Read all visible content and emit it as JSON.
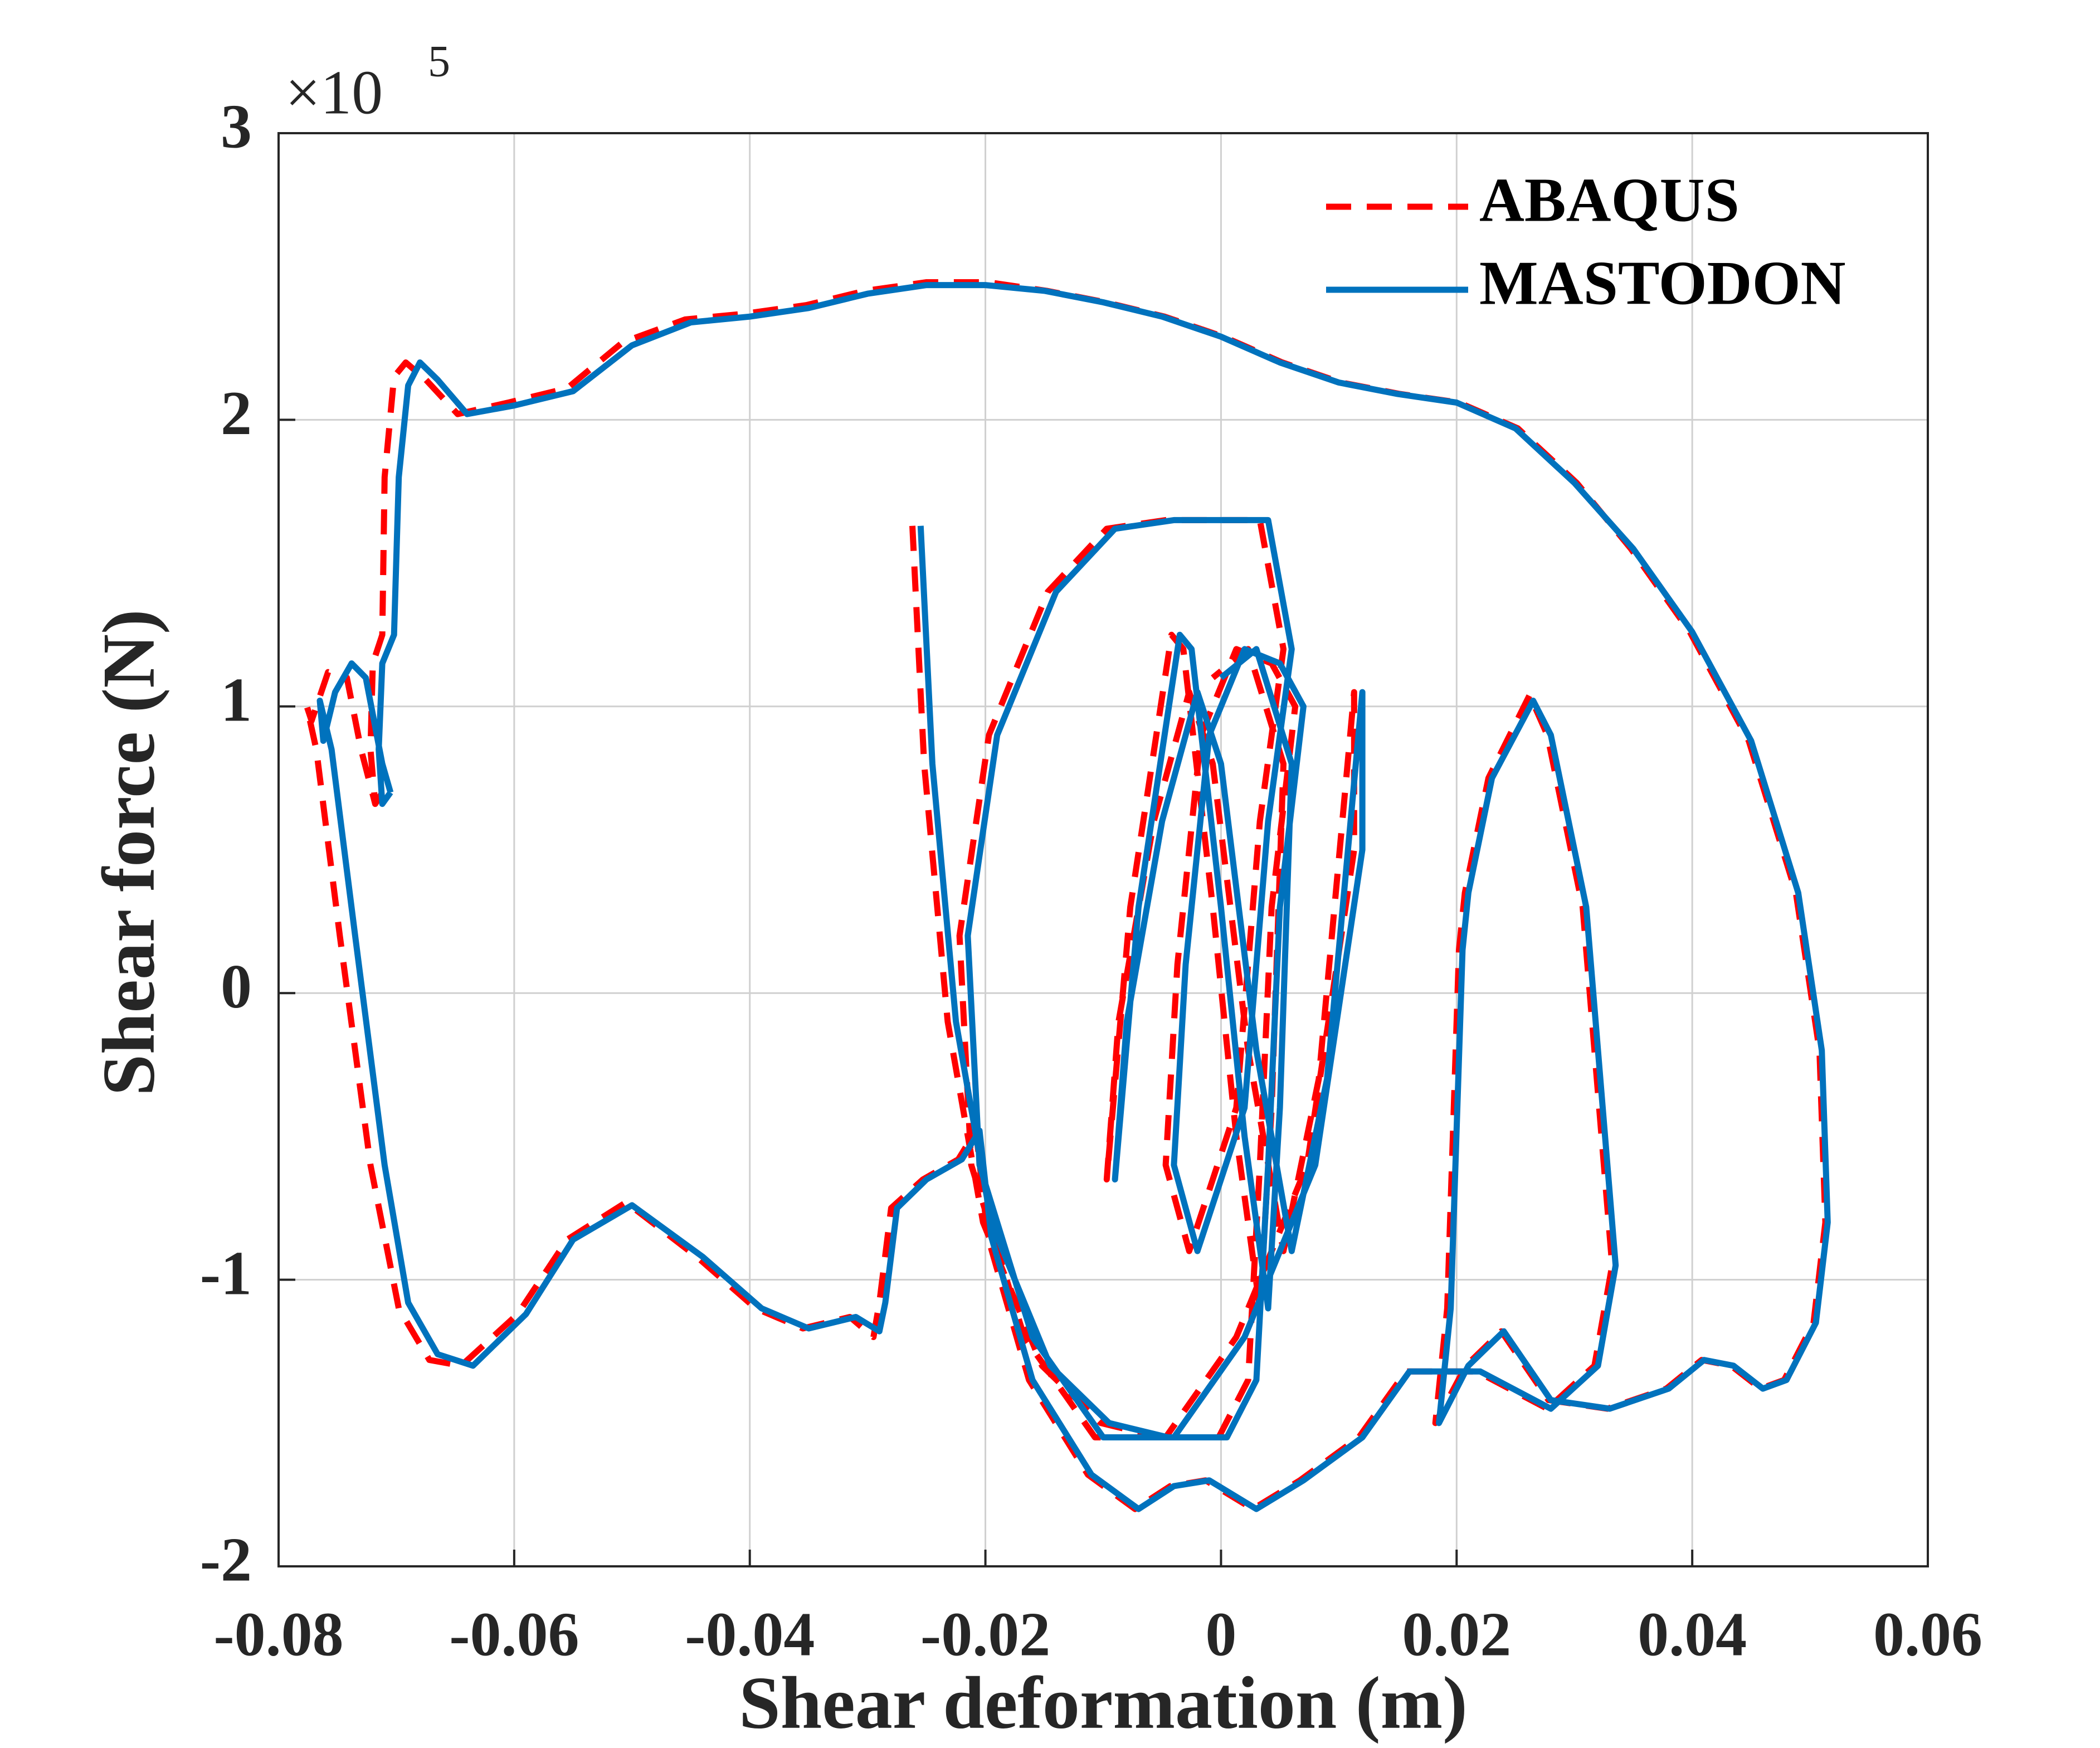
{
  "chart_data": {
    "type": "line",
    "x_label": "Shear deformation (m)",
    "y_label": "Shear force (N)",
    "y_multiplier": "×10",
    "y_multiplier_exponent": "5",
    "xlim": [
      -0.08,
      0.06
    ],
    "xticks": [
      -0.08,
      -0.06,
      -0.04,
      -0.02,
      0,
      0.02,
      0.04,
      0.06
    ],
    "ylim": [
      -2,
      3
    ],
    "yticks": [
      -2,
      -1,
      0,
      1,
      2,
      3
    ],
    "grid": true,
    "legend": "top-right",
    "series": [
      {
        "name": "ABAQUS",
        "color": "#ff0000",
        "dash": true,
        "x": [
          -0.0712,
          -0.0718,
          -0.0722,
          -0.072,
          -0.0712,
          -0.071,
          -0.0702,
          -0.0692,
          -0.0675,
          -0.0648,
          -0.0605,
          -0.0555,
          -0.0508,
          -0.0455,
          -0.0405,
          -0.0352,
          -0.0302,
          -0.025,
          -0.0198,
          -0.0148,
          -0.0098,
          -0.0048,
          0.0002,
          0.0052,
          0.0102,
          0.0152,
          0.0202,
          0.0252,
          0.0302,
          0.0348,
          0.0398,
          0.0448,
          0.0488,
          0.0508,
          0.0513,
          0.0503,
          0.0478,
          0.0458,
          0.0433,
          0.0408,
          0.0378,
          0.0328,
          0.0278,
          0.0238,
          0.0208,
          0.0182,
          0.0192,
          0.0202,
          0.0207,
          0.0227,
          0.0262,
          0.0277,
          0.0307,
          0.0332,
          0.0317,
          0.0277,
          0.0217,
          0.0157,
          0.0117,
          0.0067,
          0.0027,
          -0.0013,
          -0.0043,
          -0.0073,
          -0.0113,
          -0.0163,
          -0.0198,
          -0.0208,
          -0.0223,
          -0.0253,
          -0.028,
          -0.029,
          -0.0295,
          -0.0315,
          -0.0355,
          -0.0395,
          -0.0445,
          -0.0505,
          -0.0555,
          -0.0597,
          -0.0645,
          -0.0672,
          -0.0698,
          -0.0722,
          -0.0748,
          -0.0768,
          -0.0776,
          -0.0772,
          -0.0758,
          -0.0742,
          -0.073,
          -0.0718,
          -0.0712,
          null,
          -0.0262,
          -0.0252,
          -0.0232,
          -0.0202,
          -0.0152,
          -0.0102,
          -0.0052,
          -0.0002,
          0.0023,
          0.0033,
          0.0043,
          0.0063,
          0.0043,
          0.0013,
          -0.0017,
          -0.0037,
          -0.0047,
          -0.0027,
          0.0013,
          0.0033,
          0.0053,
          0.0033,
          -0.0047,
          -0.0097,
          -0.0147,
          -0.0197,
          -0.0222,
          -0.0212,
          -0.0167,
          -0.0107,
          -0.0047,
          0.0013,
          0.0073,
          0.0113,
          0.0113,
          0.0103,
          0.0083,
          0.0053,
          0.0023,
          -0.0007,
          -0.0027,
          -0.0057,
          -0.0087,
          -0.0097,
          -0.0077,
          -0.0042,
          -0.0032,
          -0.0007,
          0.0013,
          0.0033,
          0.0043,
          0.0053,
          0.0023,
          -0.0007
        ],
        "values": [
          0.7,
          0.66,
          0.85,
          1.15,
          1.25,
          1.8,
          2.15,
          2.2,
          2.14,
          2.02,
          2.06,
          2.11,
          2.27,
          2.35,
          2.37,
          2.4,
          2.45,
          2.48,
          2.48,
          2.45,
          2.41,
          2.36,
          2.29,
          2.2,
          2.13,
          2.09,
          2.06,
          1.97,
          1.78,
          1.55,
          1.26,
          0.88,
          0.35,
          -0.2,
          -0.8,
          -1.15,
          -1.35,
          -1.38,
          -1.3,
          -1.28,
          -1.38,
          -1.45,
          -1.42,
          -1.18,
          -1.3,
          -1.5,
          -1.1,
          0.15,
          0.35,
          0.75,
          1.04,
          0.9,
          0.3,
          -0.95,
          -1.3,
          -1.45,
          -1.32,
          -1.32,
          -1.55,
          -1.7,
          -1.8,
          -1.7,
          -1.72,
          -1.8,
          -1.68,
          -1.35,
          -0.85,
          -0.48,
          -0.58,
          -0.65,
          -0.75,
          -1.08,
          -1.2,
          -1.13,
          -1.17,
          -1.1,
          -0.92,
          -0.73,
          -0.86,
          -1.12,
          -1.3,
          -1.28,
          -1.1,
          -0.6,
          0.2,
          0.85,
          1.0,
          0.95,
          1.12,
          1.1,
          0.85,
          0.66,
          0.7,
          null,
          1.63,
          0.8,
          -0.1,
          -0.8,
          -1.3,
          -1.5,
          -1.55,
          -1.55,
          -1.35,
          -0.6,
          0.3,
          1.0,
          1.15,
          1.2,
          0.9,
          0.1,
          -0.6,
          -0.9,
          -0.4,
          0.6,
          1.2,
          1.65,
          1.65,
          1.62,
          1.4,
          0.9,
          0.2,
          -0.6,
          -1.2,
          -1.55,
          -1.55,
          -1.2,
          -0.6,
          0.5,
          1.05,
          0.6,
          -0.3,
          -0.9,
          -0.2,
          0.8,
          1.05,
          0.6,
          -0.1,
          -0.65,
          0.3,
          1.25,
          1.2,
          0.3,
          -0.5,
          -1.1,
          -0.4,
          0.8,
          1.2,
          1.1
        ]
      },
      {
        "name": "MASTODON",
        "color": "#0072bd",
        "dash": false,
        "x": [
          -0.0705,
          -0.0712,
          -0.0715,
          -0.0712,
          -0.0702,
          -0.0698,
          -0.069,
          -0.068,
          -0.0665,
          -0.064,
          -0.06,
          -0.055,
          -0.05,
          -0.045,
          -0.04,
          -0.035,
          -0.03,
          -0.025,
          -0.02,
          -0.015,
          -0.01,
          -0.005,
          0,
          0.005,
          0.01,
          0.015,
          0.02,
          0.025,
          0.03,
          0.035,
          0.04,
          0.045,
          0.049,
          0.051,
          0.0515,
          0.0505,
          0.048,
          0.046,
          0.0435,
          0.041,
          0.038,
          0.033,
          0.028,
          0.024,
          0.021,
          0.0185,
          0.0195,
          0.0205,
          0.021,
          0.023,
          0.0265,
          0.028,
          0.031,
          0.0335,
          0.032,
          0.028,
          0.022,
          0.016,
          0.012,
          0.007,
          0.003,
          -0.001,
          -0.004,
          -0.007,
          -0.011,
          -0.016,
          -0.0195,
          -0.0205,
          -0.022,
          -0.025,
          -0.0275,
          -0.0285,
          -0.029,
          -0.031,
          -0.035,
          -0.039,
          -0.044,
          -0.05,
          -0.055,
          -0.059,
          -0.0635,
          -0.0665,
          -0.069,
          -0.071,
          -0.0735,
          -0.0755,
          -0.0765,
          -0.0762,
          -0.0752,
          -0.0738,
          -0.0726,
          -0.0712,
          -0.0705,
          null,
          -0.0255,
          -0.0245,
          -0.0225,
          -0.0195,
          -0.0145,
          -0.0095,
          -0.0045,
          0.0005,
          0.003,
          0.004,
          0.005,
          0.007,
          0.005,
          0.002,
          -0.001,
          -0.003,
          -0.004,
          -0.002,
          0.002,
          0.004,
          0.006,
          0.004,
          -0.004,
          -0.009,
          -0.014,
          -0.019,
          -0.0215,
          -0.0205,
          -0.016,
          -0.01,
          -0.004,
          0.002,
          0.008,
          0.012,
          0.012,
          0.011,
          0.009,
          0.006,
          0.003,
          0,
          -0.002,
          -0.005,
          -0.008,
          -0.009,
          -0.007,
          -0.0035,
          -0.0025,
          0,
          0.002,
          0.004,
          0.005,
          0.006,
          0.003,
          0
        ],
        "values": [
          0.7,
          0.66,
          0.85,
          1.15,
          1.25,
          1.8,
          2.12,
          2.2,
          2.14,
          2.02,
          2.05,
          2.1,
          2.26,
          2.34,
          2.36,
          2.39,
          2.44,
          2.47,
          2.47,
          2.45,
          2.41,
          2.36,
          2.29,
          2.2,
          2.13,
          2.09,
          2.06,
          1.97,
          1.78,
          1.55,
          1.26,
          0.88,
          0.35,
          -0.2,
          -0.8,
          -1.15,
          -1.35,
          -1.38,
          -1.3,
          -1.28,
          -1.38,
          -1.45,
          -1.42,
          -1.18,
          -1.3,
          -1.5,
          -1.1,
          0.15,
          0.35,
          0.75,
          1.02,
          0.9,
          0.3,
          -0.95,
          -1.3,
          -1.45,
          -1.32,
          -1.32,
          -1.55,
          -1.7,
          -1.8,
          -1.7,
          -1.72,
          -1.8,
          -1.68,
          -1.35,
          -0.85,
          -0.48,
          -0.58,
          -0.65,
          -0.75,
          -1.08,
          -1.18,
          -1.13,
          -1.17,
          -1.1,
          -0.92,
          -0.74,
          -0.86,
          -1.12,
          -1.3,
          -1.26,
          -1.08,
          -0.6,
          0.2,
          0.85,
          1.02,
          0.88,
          1.05,
          1.15,
          1.1,
          0.8,
          0.7,
          null,
          1.63,
          0.8,
          -0.1,
          -0.8,
          -1.3,
          -1.5,
          -1.55,
          -1.55,
          -1.35,
          -0.6,
          0.3,
          1.0,
          1.15,
          1.2,
          0.9,
          0.1,
          -0.6,
          -0.9,
          -0.4,
          0.6,
          1.2,
          1.65,
          1.65,
          1.62,
          1.4,
          0.9,
          0.2,
          -0.6,
          -1.2,
          -1.55,
          -1.55,
          -1.2,
          -0.6,
          0.5,
          1.05,
          0.6,
          -0.3,
          -0.9,
          -0.2,
          0.8,
          1.05,
          0.6,
          -0.1,
          -0.65,
          0.3,
          1.25,
          1.2,
          0.3,
          -0.5,
          -1.1,
          -0.4,
          0.8,
          1.2,
          1.1
        ]
      }
    ]
  }
}
